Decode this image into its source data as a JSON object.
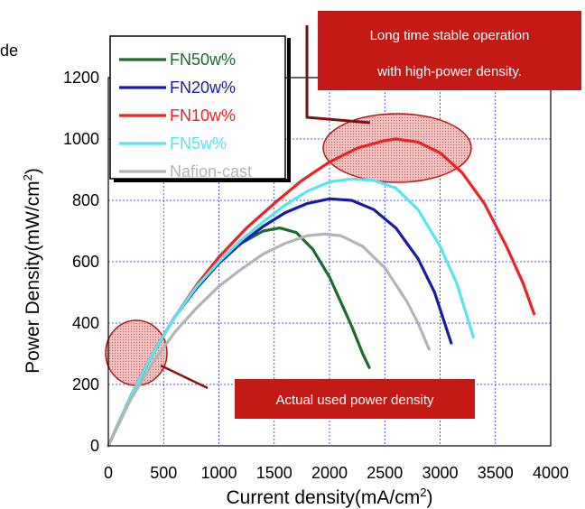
{
  "chart_data": {
    "type": "line",
    "xlabel": "Current density(mA/cm",
    "xlabel_sup": "2",
    "xlabel_end": ")",
    "ylabel": "Power Density(mW/cm",
    "ylabel_sup": "2",
    "ylabel_end": ")",
    "xlim": [
      0,
      4000
    ],
    "ylim": [
      0,
      1200
    ],
    "xticks": [
      0,
      500,
      1000,
      1500,
      2000,
      2500,
      3000,
      3500,
      4000
    ],
    "yticks": [
      0,
      200,
      400,
      600,
      800,
      1000,
      1200
    ],
    "grid": true,
    "legend_position": "top-left",
    "corner_text": "de",
    "series": [
      {
        "name": "FN50w%",
        "color": "#1e6b2e",
        "x": [
          0,
          200,
          400,
          600,
          800,
          1000,
          1200,
          1400,
          1550,
          1700,
          1850,
          2000,
          2100,
          2200,
          2300,
          2360
        ],
        "y": [
          0,
          160,
          300,
          420,
          520,
          600,
          660,
          700,
          710,
          695,
          640,
          550,
          470,
          390,
          300,
          255
        ]
      },
      {
        "name": "FN20w%",
        "color": "#1a1aa8",
        "x": [
          0,
          200,
          400,
          600,
          800,
          1000,
          1200,
          1400,
          1600,
          1800,
          2000,
          2200,
          2400,
          2600,
          2800,
          2950,
          3100
        ],
        "y": [
          0,
          160,
          300,
          420,
          515,
          595,
          660,
          715,
          760,
          790,
          805,
          800,
          770,
          710,
          610,
          500,
          335
        ]
      },
      {
        "name": "FN10w%",
        "color": "#ee2222",
        "x": [
          0,
          200,
          400,
          600,
          800,
          1000,
          1250,
          1500,
          1750,
          2000,
          2250,
          2500,
          2600,
          2800,
          3000,
          3200,
          3400,
          3600,
          3750,
          3850
        ],
        "y": [
          0,
          160,
          300,
          420,
          525,
          615,
          710,
          790,
          865,
          925,
          970,
          995,
          1000,
          990,
          955,
          890,
          790,
          650,
          530,
          430
        ]
      },
      {
        "name": "FN5w%",
        "color": "#55e6f2",
        "x": [
          0,
          200,
          400,
          600,
          800,
          1000,
          1200,
          1400,
          1600,
          1800,
          2000,
          2200,
          2400,
          2600,
          2800,
          3000,
          3150,
          3300
        ],
        "y": [
          0,
          160,
          300,
          420,
          520,
          600,
          670,
          730,
          785,
          830,
          860,
          870,
          865,
          840,
          770,
          650,
          530,
          355
        ]
      },
      {
        "name": "Nafion-cast",
        "color": "#b4b4b4",
        "x": [
          0,
          200,
          400,
          600,
          800,
          1000,
          1200,
          1400,
          1600,
          1800,
          1950,
          2100,
          2300,
          2500,
          2700,
          2800,
          2900
        ],
        "y": [
          0,
          150,
          270,
          370,
          450,
          520,
          575,
          625,
          660,
          685,
          690,
          685,
          650,
          580,
          470,
          400,
          315
        ]
      }
    ],
    "annotations": {
      "top_callout": [
        "Long time stable operation",
        "with high-power density."
      ],
      "bottom_callout": "Actual used power density"
    }
  },
  "colors": {
    "callout_bg": "#c41a16",
    "ellipse_fill": "#f0b8b8",
    "ellipse_stroke": "#b81818",
    "grid": "#2b2bff"
  }
}
